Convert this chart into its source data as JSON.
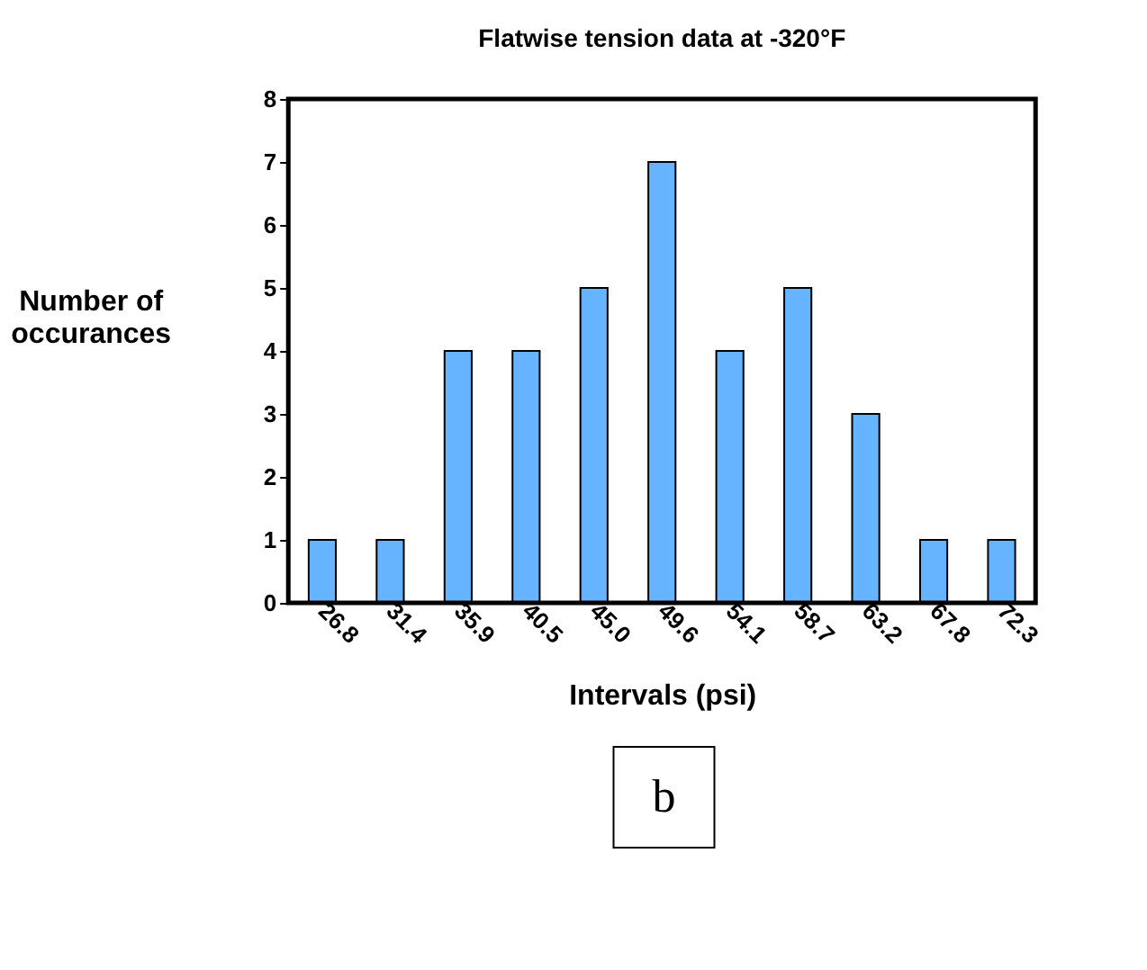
{
  "chart_data": {
    "type": "bar",
    "title": "Flatwise tension data at -320°F",
    "xlabel": "Intervals (psi)",
    "ylabel": "Number of occurances",
    "categories": [
      "26.8",
      "31.4",
      "35.9",
      "40.5",
      "45.0",
      "49.6",
      "54.1",
      "58.7",
      "63.2",
      "67.8",
      "72.3"
    ],
    "values": [
      1,
      1,
      4,
      4,
      5,
      7,
      4,
      5,
      3,
      1,
      1
    ],
    "color": "#66b3ff",
    "ylim": [
      0,
      8
    ],
    "yticks": [
      0,
      1,
      2,
      3,
      4,
      5,
      6,
      7,
      8
    ],
    "grid": false,
    "annotations": [
      "b"
    ]
  }
}
